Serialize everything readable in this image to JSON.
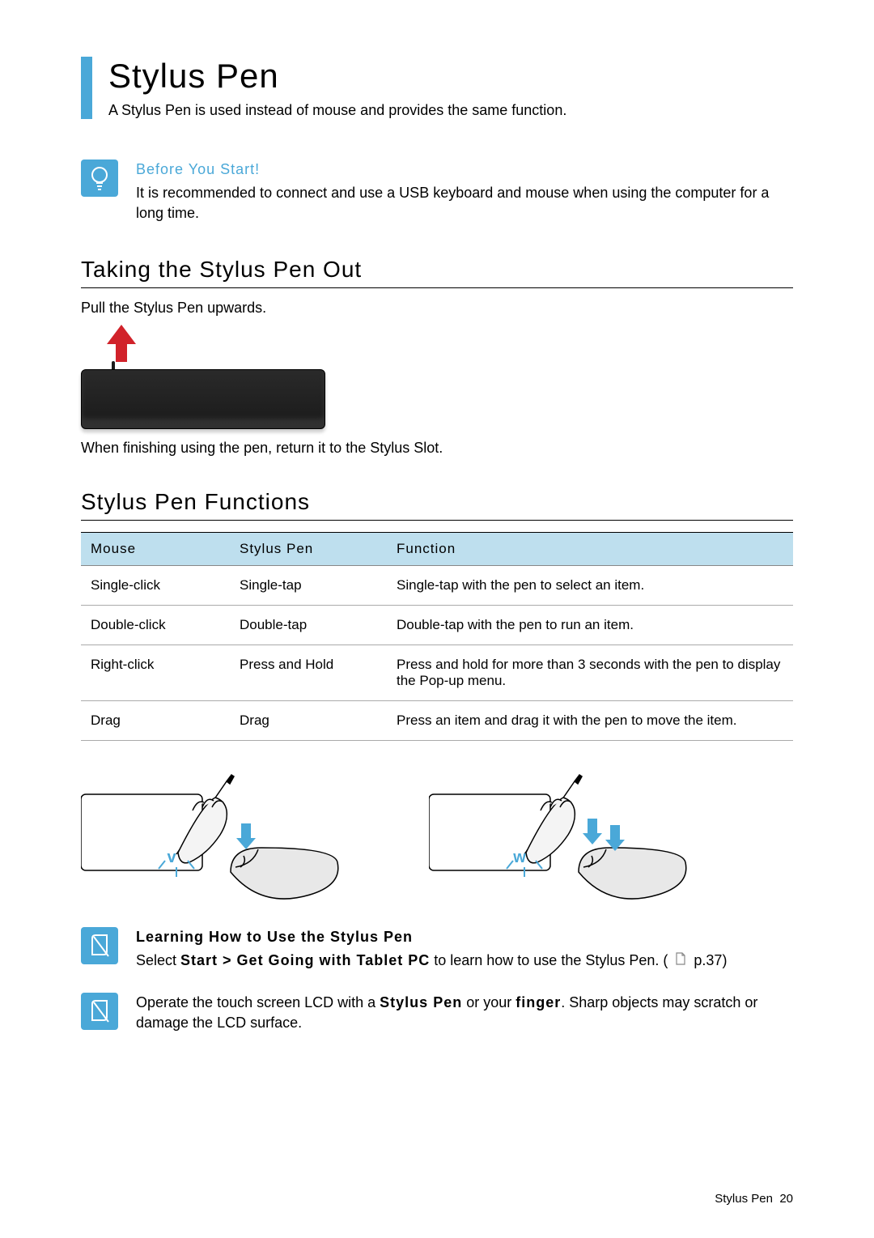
{
  "title": "Stylus Pen",
  "intro": "A Stylus Pen is used instead of mouse and provides the same function.",
  "tip1": {
    "heading": "Before You Start!",
    "body": "It is recommended to connect and use a USB keyboard and mouse when using the computer for a long time."
  },
  "colors": {
    "accent": "#4aa8d8",
    "arrow_red": "#d1222a"
  },
  "section1": {
    "heading": "Taking the Stylus Pen Out",
    "line1": "Pull the Stylus Pen upwards.",
    "line2": "When finishing using the pen, return it to the Stylus Slot."
  },
  "section2": {
    "heading": "Stylus Pen Functions",
    "columns": [
      "Mouse",
      "Stylus Pen",
      "Function"
    ],
    "rows": [
      [
        "Single-click",
        "Single-tap",
        "Single-tap with the pen to select an item."
      ],
      [
        "Double-click",
        "Double-tap",
        "Double-tap with the pen to run an item."
      ],
      [
        "Right-click",
        "Press and Hold",
        "Press and hold for more than 3 seconds with the pen to display the Pop-up menu."
      ],
      [
        "Drag",
        "Drag",
        "Press an item and drag it with the pen to move the item."
      ]
    ]
  },
  "tip2": {
    "heading": "Learning How to Use the Stylus Pen",
    "body_pre": "Select ",
    "body_bold": "Start > Get Going with Tablet PC",
    "body_post": " to learn how to use the Stylus Pen. ( ",
    "page_ref": "p.37",
    "body_end": ")"
  },
  "tip3": {
    "body_pre": "Operate the touch screen LCD with a ",
    "bold1": "Stylus Pen",
    "mid": " or your ",
    "bold2": "finger",
    "body_post": ". Sharp objects may scratch or damage the LCD surface."
  },
  "footer": {
    "label": "Stylus Pen",
    "page": "20"
  }
}
